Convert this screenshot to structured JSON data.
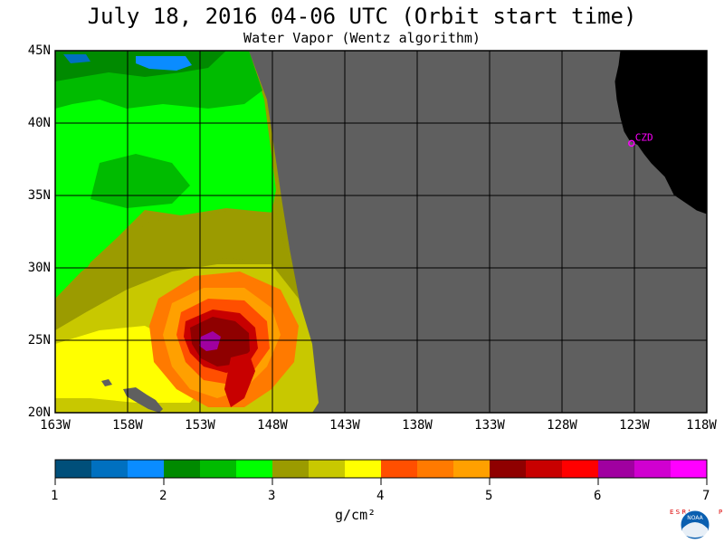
{
  "header": {
    "title": "July 18, 2016  04-06 UTC  (Orbit start time)",
    "subtitle": "Water Vapor (Wentz algorithm)"
  },
  "map": {
    "lat_labels": [
      "45N",
      "40N",
      "35N",
      "30N",
      "25N",
      "20N"
    ],
    "lon_labels": [
      "163W",
      "158W",
      "153W",
      "148W",
      "143W",
      "138W",
      "133W",
      "128W",
      "123W",
      "118W"
    ],
    "lat_range": [
      20,
      45
    ],
    "lon_range": [
      -163,
      -118
    ],
    "station_label": "CZD",
    "station": {
      "lat": 38.6,
      "lon": -123.2
    },
    "colors": {
      "no_data": "#5f5f5f",
      "land": "#000000",
      "grid": "#000000",
      "station": "#ff00ff"
    }
  },
  "colorbar": {
    "ticks": [
      "1",
      "2",
      "3",
      "4",
      "5",
      "6",
      "7"
    ],
    "unit": "g/cm²",
    "colors": [
      "#004f7a",
      "#0070c0",
      "#0a8cff",
      "#008a00",
      "#00bb00",
      "#00ff00",
      "#9b9b00",
      "#c8c800",
      "#ffff00",
      "#ff4f00",
      "#ff7a00",
      "#ffa000",
      "#8f0000",
      "#c80000",
      "#ff0000",
      "#a000a0",
      "#d000d0",
      "#ff00ff"
    ]
  },
  "logo": {
    "left_text": "ESRL",
    "right_text": "PSD",
    "center_text": "NOAA"
  }
}
